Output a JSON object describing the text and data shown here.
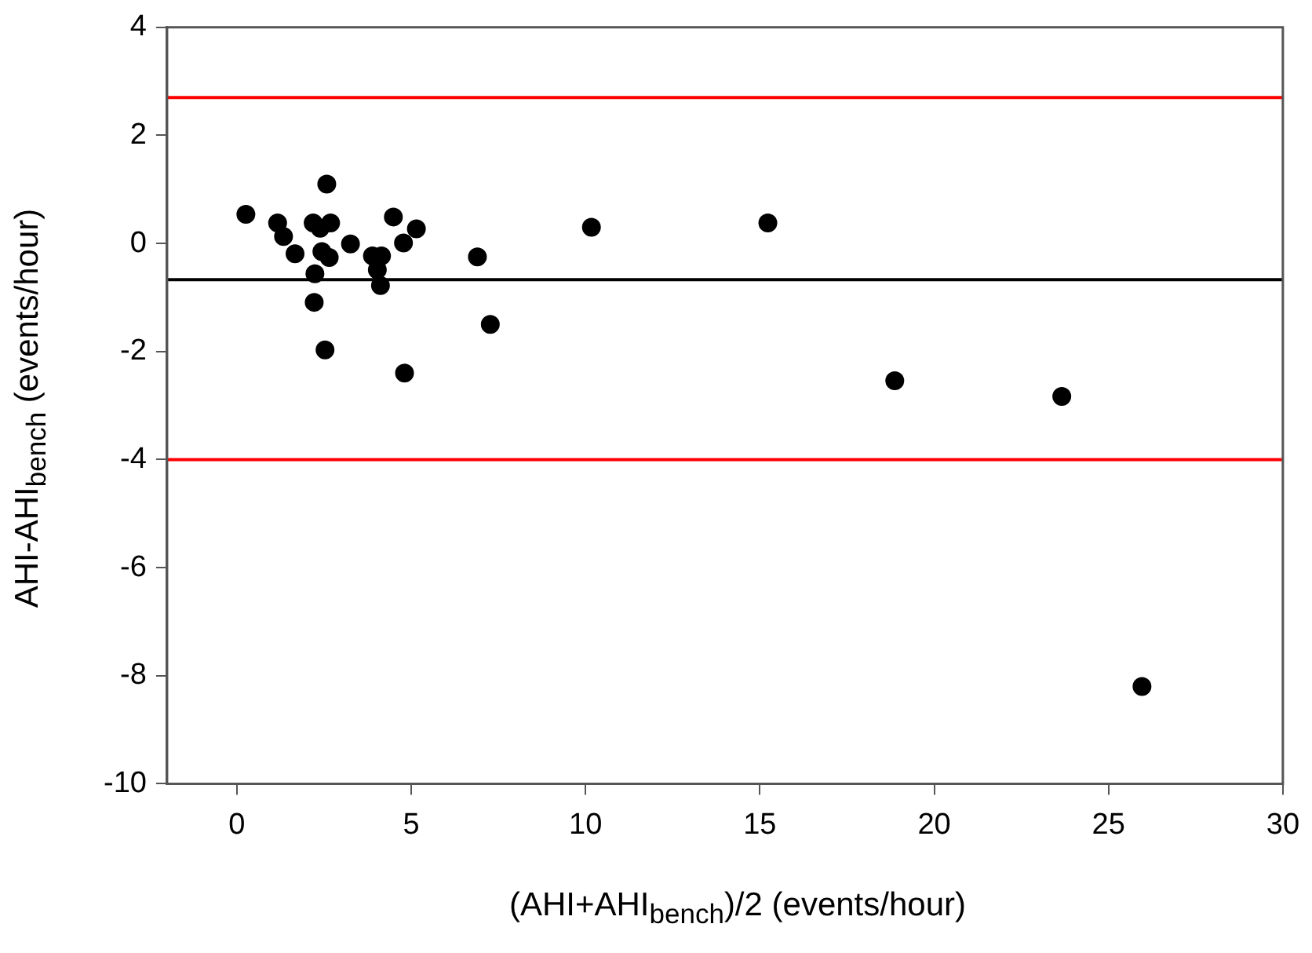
{
  "chart_data": {
    "type": "scatter",
    "xlabel": "(AHI+AHI$_{bench}$)/2 (events/hour)",
    "ylabel": "AHI-AHI$_{bench}$ (events/hour)",
    "x": [
      0.26,
      1.17,
      1.34,
      1.67,
      2.19,
      2.39,
      2.69,
      2.58,
      2.44,
      2.65,
      2.24,
      2.22,
      2.53,
      3.26,
      3.89,
      4.15,
      4.03,
      4.12,
      4.49,
      5.15,
      4.78,
      4.81,
      6.9,
      7.27,
      10.17,
      15.23,
      18.87,
      23.66,
      25.96
    ],
    "series": [
      {
        "color": "#000000",
        "values": [
          0.54,
          0.38,
          0.13,
          -0.19,
          0.38,
          0.28,
          0.38,
          1.1,
          -0.15,
          -0.26,
          -0.56,
          -1.09,
          -1.97,
          -0.01,
          -0.23,
          -0.23,
          -0.49,
          -0.78,
          0.49,
          0.27,
          0.01,
          -2.4,
          -0.25,
          -1.5,
          0.3,
          0.38,
          -2.54,
          -2.83,
          -8.2
        ]
      }
    ],
    "xlim": [
      -2,
      30
    ],
    "xticks": [
      0,
      5,
      10,
      15,
      20,
      25,
      30
    ],
    "ylim": [
      -10,
      4
    ],
    "yticks": [
      -10,
      -8,
      -6,
      -4,
      -2,
      0,
      2,
      4
    ],
    "ref_lines": [
      {
        "axis": "y",
        "value": 2.7,
        "color": "#ff0000"
      },
      {
        "axis": "y",
        "value": -0.67,
        "color": "#000000"
      },
      {
        "axis": "y",
        "value": -4.0,
        "color": "#ff0000"
      }
    ],
    "marker": "circle",
    "grid": false,
    "legend": false
  }
}
